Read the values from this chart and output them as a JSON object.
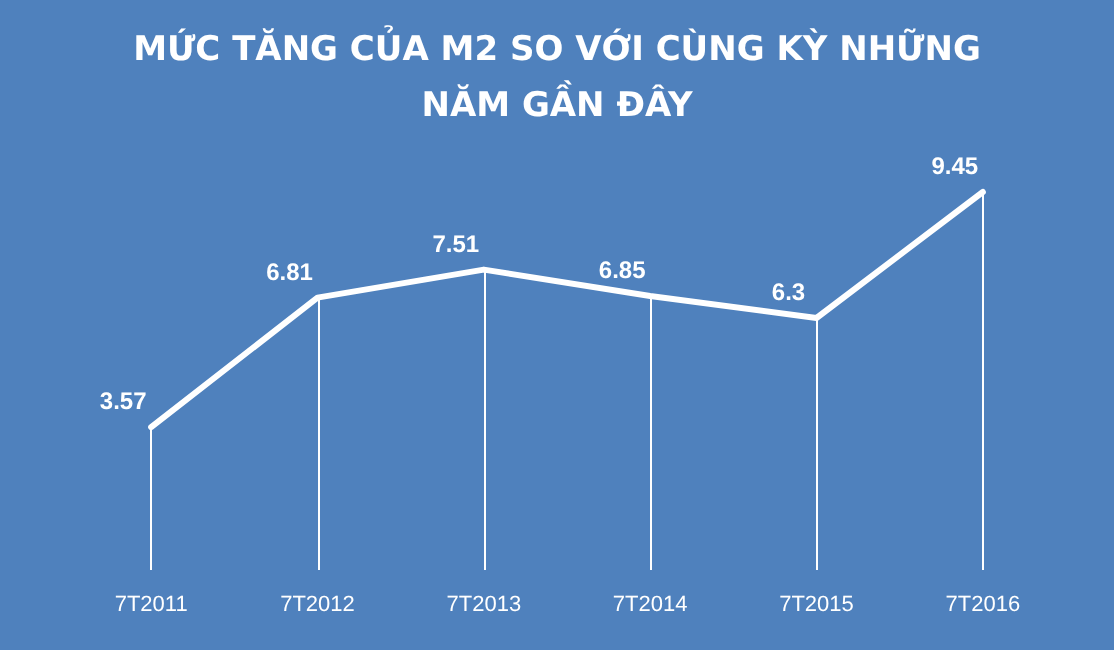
{
  "chart_data": {
    "type": "line",
    "title": "MỨC TĂNG CỦA M2 SO VỚI CÙNG KỲ NHỮNG\nNĂM GẦN ĐÂY",
    "categories": [
      "7T2011",
      "7T2012",
      "7T2013",
      "7T2014",
      "7T2015",
      "7T2016"
    ],
    "series": [
      {
        "color": "#ffffff",
        "values": [
          3.57,
          6.81,
          7.51,
          6.85,
          6.3,
          9.45
        ]
      }
    ],
    "data_labels": true,
    "grid": "x",
    "marker": "none",
    "line_style": "solid",
    "tick_labels": "x"
  }
}
